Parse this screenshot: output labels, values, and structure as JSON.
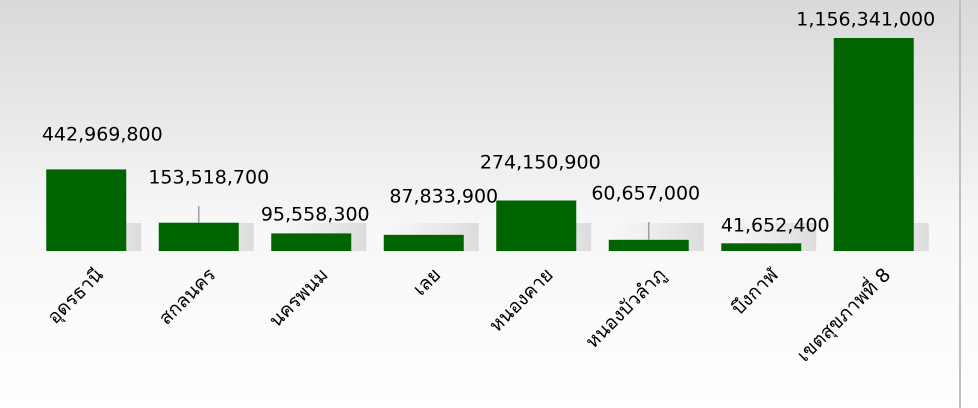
{
  "chart_data": {
    "type": "bar",
    "categories": [
      "อุดรธานี",
      "สกลนคร",
      "นครพนม",
      "เลย",
      "หนองคาย",
      "หนองบัวลำภู",
      "บึงกาฬ",
      "เขตสุขภาพที่ 8"
    ],
    "values": [
      442969800,
      153518700,
      95558300,
      87833900,
      274150900,
      60657000,
      41652400,
      1156341000
    ],
    "value_labels": [
      "442,969,800",
      "153,518,700",
      "95,558,300",
      "87,833,900",
      "274,150,900",
      "60,657,000",
      "41,652,400",
      "1,156,341,000"
    ],
    "color": "#006400"
  }
}
